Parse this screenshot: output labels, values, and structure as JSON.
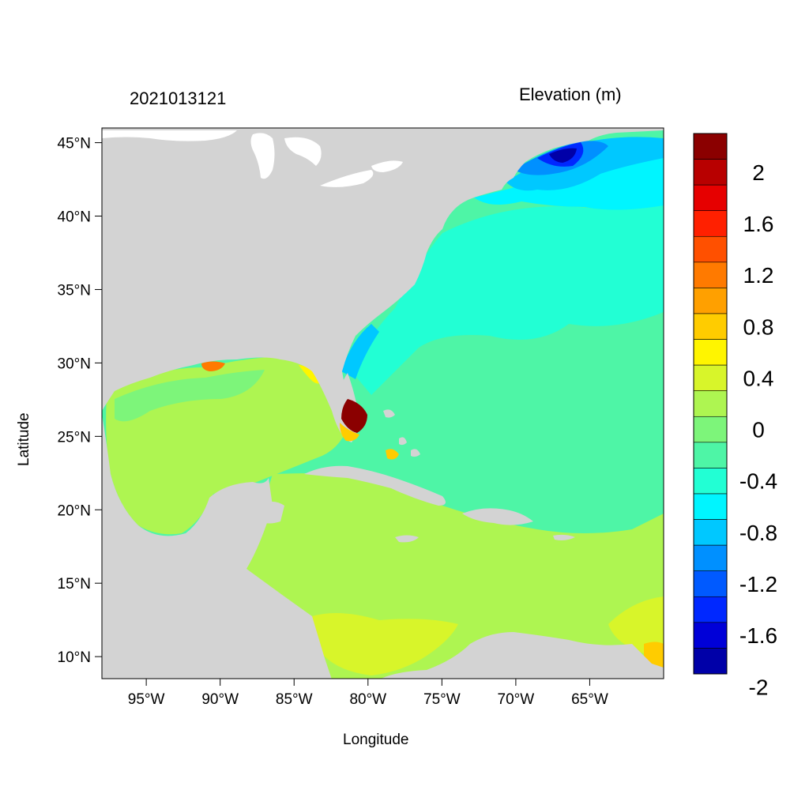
{
  "timestamp": "2021013121",
  "map_title": "Elevation (m)",
  "x_axis_label": "Longitude",
  "y_axis_label": "Latitude",
  "x_ticks": [
    {
      "lon": -95,
      "label": "95°W"
    },
    {
      "lon": -90,
      "label": "90°W"
    },
    {
      "lon": -85,
      "label": "85°W"
    },
    {
      "lon": -80,
      "label": "80°W"
    },
    {
      "lon": -75,
      "label": "75°W"
    },
    {
      "lon": -70,
      "label": "70°W"
    },
    {
      "lon": -65,
      "label": "65°W"
    }
  ],
  "y_ticks": [
    {
      "lat": 45,
      "label": "45°N"
    },
    {
      "lat": 40,
      "label": "40°N"
    },
    {
      "lat": 35,
      "label": "35°N"
    },
    {
      "lat": 30,
      "label": "30°N"
    },
    {
      "lat": 25,
      "label": "25°N"
    },
    {
      "lat": 20,
      "label": "20°N"
    },
    {
      "lat": 15,
      "label": "15°N"
    },
    {
      "lat": 10,
      "label": "10°N"
    }
  ],
  "lon_range": [
    -98,
    -60
  ],
  "lat_range": [
    8.5,
    46
  ],
  "colorbar": {
    "colors_top_to_bottom": [
      "#8b0000",
      "#b80000",
      "#e60000",
      "#ff2000",
      "#ff5000",
      "#ff7a00",
      "#ffa000",
      "#ffcc00",
      "#fff500",
      "#d8f52a",
      "#aef551",
      "#7df57a",
      "#4ef5a6",
      "#22ffd4",
      "#00f5ff",
      "#00c8ff",
      "#0090ff",
      "#005aff",
      "#0028ff",
      "#0000d8",
      "#0000a8"
    ],
    "labels": [
      {
        "value": 2,
        "label": "2"
      },
      {
        "value": 1.6,
        "label": "1.6"
      },
      {
        "value": 1.2,
        "label": "1.2"
      },
      {
        "value": 0.8,
        "label": "0.8"
      },
      {
        "value": 0.4,
        "label": "0.4"
      },
      {
        "value": 0,
        "label": "0"
      },
      {
        "value": -0.4,
        "label": "-0.4"
      },
      {
        "value": -0.8,
        "label": "-0.8"
      },
      {
        "value": -1.2,
        "label": "-1.2"
      },
      {
        "value": -1.6,
        "label": "-1.6"
      },
      {
        "value": -2,
        "label": "-2"
      }
    ]
  },
  "colors": {
    "land": "#d3d3d3",
    "lakes": "#ffffff",
    "ocean_background": "#4ef5a6",
    "caribbean": "#aef551"
  }
}
